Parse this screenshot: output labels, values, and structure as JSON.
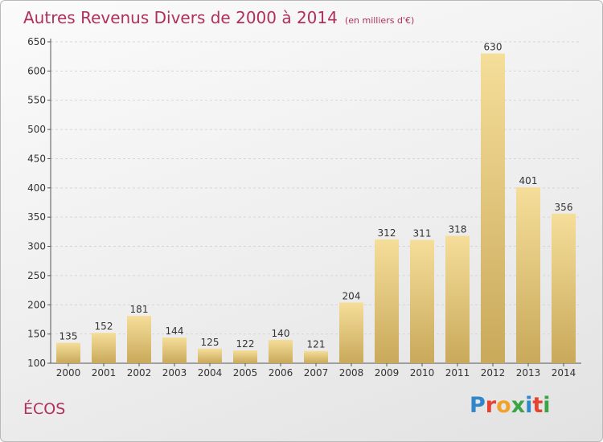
{
  "title": "Autres Revenus Divers de 2000 à 2014",
  "unit": "(en milliers d'€)",
  "commune": "ÉCOS",
  "logo": {
    "letters": [
      "P",
      "r",
      "o",
      "x",
      "i",
      "t",
      "i"
    ],
    "colors": [
      "#2f86c9",
      "#e7412f",
      "#f0a22a",
      "#3aa547",
      "#2f86c9",
      "#e7412f",
      "#3aa547"
    ]
  },
  "colors": {
    "bar_light": "#f5de9a",
    "bar_dark": "#c9a95a",
    "title": "#b0305a",
    "grid": "#d6d6d6",
    "axis": "#555555"
  },
  "chart_data": {
    "type": "bar",
    "title": "Autres Revenus Divers de 2000 à 2014",
    "subtitle": "(en milliers d'€)",
    "xlabel": "",
    "ylabel": "",
    "ylim": [
      100,
      650
    ],
    "yticks": [
      100,
      150,
      200,
      250,
      300,
      350,
      400,
      450,
      500,
      550,
      600,
      650
    ],
    "categories": [
      "2000",
      "2001",
      "2002",
      "2003",
      "2004",
      "2005",
      "2006",
      "2007",
      "2008",
      "2009",
      "2010",
      "2011",
      "2012",
      "2013",
      "2014"
    ],
    "values": [
      135,
      152,
      181,
      144,
      125,
      122,
      140,
      121,
      204,
      312,
      311,
      318,
      630,
      401,
      356
    ],
    "grid": true,
    "legend": "none"
  }
}
